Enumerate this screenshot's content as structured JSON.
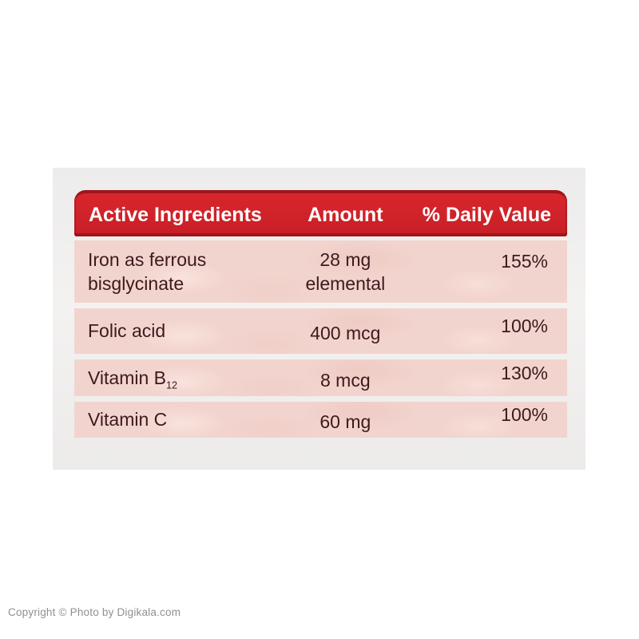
{
  "page": {
    "copyright": "Copyright © Photo by Digikala.com"
  },
  "colors": {
    "header_red": "#c71f26",
    "header_red_dark": "#9d151a",
    "row_pink": "#f2d4ce",
    "row_text": "#3e191c",
    "photo_background": "#eeedec",
    "header_text": "#ffffff",
    "copyright_gray": "#8d9093"
  },
  "table": {
    "headers": [
      "Active Ingredients",
      "Amount",
      "% Daily Value"
    ],
    "rows": [
      {
        "ingredient_line1": "Iron as ferrous",
        "ingredient_line2": "bisglycinate",
        "amount_line1": "28 mg",
        "amount_line2": "elemental",
        "daily_value": "155%"
      },
      {
        "ingredient_line1": "Folic acid",
        "amount_line1": "400 mcg",
        "daily_value": "100%"
      },
      {
        "ingredient_line1": "Vitamin B",
        "ingredient_subscript": "12",
        "amount_line1": "8 mcg",
        "daily_value": "130%"
      },
      {
        "ingredient_line1": "Vitamin C",
        "amount_line1": "60 mg",
        "daily_value": "100%"
      }
    ]
  }
}
